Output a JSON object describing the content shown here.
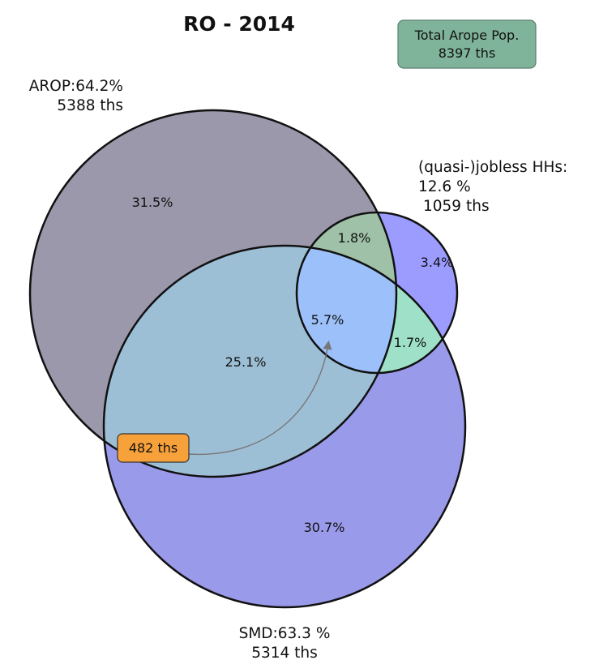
{
  "title": "RO - 2014",
  "total_box": {
    "line1": "Total Arope Pop.",
    "line2": "8397 ths",
    "color": "#7fb39a"
  },
  "sets": {
    "arop": {
      "line1": "AROP:64.2%",
      "line2": "5388 ths",
      "color": "#9a98aa"
    },
    "jobless": {
      "line1": "(quasi-)jobless HHs:",
      "line2": "12.6 %",
      "line3": "1059 ths",
      "color": "#9c9cff"
    },
    "smd": {
      "line1": "SMD:63.3 %",
      "line2": "5314 ths",
      "color": "#9a9aea"
    }
  },
  "regions": {
    "arop_only": "31.5%",
    "arop_jobless": "1.8%",
    "jobless_only": "3.4%",
    "all_three": "5.7%",
    "jobless_smd": "1.7%",
    "arop_smd": "25.1%",
    "smd_only": "30.7%"
  },
  "callout": {
    "label": "482 ths",
    "color": "#f7a13a"
  }
}
